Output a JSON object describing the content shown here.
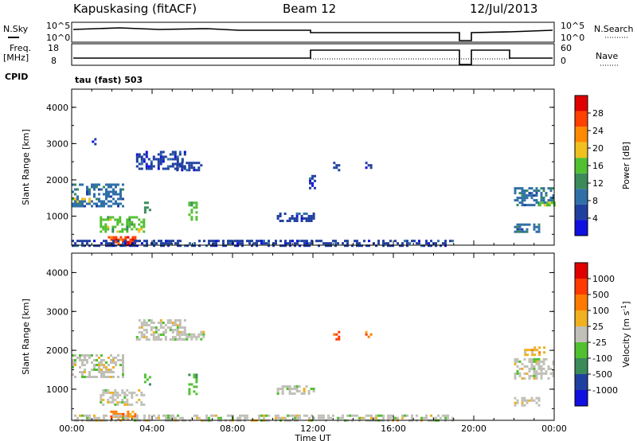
{
  "header": {
    "station": "Kapuskasing (fitACF)",
    "beam": "Beam 12",
    "date": "12/Jul/2013"
  },
  "strip1": {
    "left_label": "N.Sky",
    "left_top": "10^5",
    "left_bottom": "10^0",
    "right_top": "10^5",
    "right_bottom": "10^0",
    "right_label": "N.Search"
  },
  "strip2": {
    "left_label_1": "Freq.",
    "left_label_2": "[MHz]",
    "left_top": "18",
    "left_bottom": "8",
    "right_top": "60",
    "right_bottom": "0",
    "right_label": "Nave"
  },
  "cpid": {
    "label": "CPID",
    "value": "tau (fast) 503"
  },
  "colors": {
    "power": [
      "#1010e0",
      "#2040a0",
      "#3070a8",
      "#3a8a5a",
      "#50c030",
      "#f0c020",
      "#ff8a00",
      "#ff4000",
      "#e00000"
    ],
    "velocity": [
      "#1010e0",
      "#2040a0",
      "#3a8a5a",
      "#50c030",
      "#c0c0b8",
      "#f0b020",
      "#ff7a00",
      "#ff3a00",
      "#e00000"
    ],
    "ground": "#c0c0b8"
  },
  "chart_data": [
    {
      "type": "heatmap",
      "name": "power",
      "xlabel": "",
      "ylabel": "Slant Range [km]",
      "colorbar_label": "Power [dB]",
      "colorbar_ticks": [
        "4",
        "8",
        "12",
        "16",
        "20",
        "24",
        "28"
      ],
      "x_ticks": [
        "00:00",
        "04:00",
        "08:00",
        "12:00",
        "16:00",
        "20:00",
        "00:00"
      ],
      "y_ticks": [
        "1000",
        "2000",
        "3000",
        "4000"
      ],
      "ylim": [
        200,
        4500
      ],
      "xlim_hours": [
        0,
        24
      ],
      "regions": [
        {
          "t0": 0.0,
          "t1": 2.5,
          "r0": 1300,
          "r1": 1900,
          "level": 2
        },
        {
          "t0": 0.0,
          "t1": 0.9,
          "r0": 1400,
          "r1": 1500,
          "level": 5
        },
        {
          "t0": 1.4,
          "t1": 3.6,
          "r0": 600,
          "r1": 1000,
          "level": 4
        },
        {
          "t0": 1.8,
          "t1": 3.2,
          "r0": 250,
          "r1": 450,
          "level": 7
        },
        {
          "t0": 2.4,
          "t1": 2.8,
          "r0": 200,
          "r1": 300,
          "level": 8
        },
        {
          "t0": 3.2,
          "t1": 5.6,
          "r0": 2300,
          "r1": 2800,
          "level": 1
        },
        {
          "t0": 5.2,
          "t1": 6.6,
          "r0": 2300,
          "r1": 2500,
          "level": 1
        },
        {
          "t0": 5.8,
          "t1": 6.2,
          "r0": 900,
          "r1": 1400,
          "level": 4
        },
        {
          "t0": 3.6,
          "t1": 3.9,
          "r0": 1100,
          "r1": 1400,
          "level": 3
        },
        {
          "t0": 0.0,
          "t1": 19.0,
          "r0": 200,
          "r1": 350,
          "level": 1
        },
        {
          "t0": 1.0,
          "t1": 1.2,
          "r0": 3000,
          "r1": 3150,
          "level": 1
        },
        {
          "t0": 10.2,
          "t1": 12.0,
          "r0": 900,
          "r1": 1100,
          "level": 1
        },
        {
          "t0": 11.8,
          "t1": 12.1,
          "r0": 1800,
          "r1": 2200,
          "level": 1
        },
        {
          "t0": 13.0,
          "t1": 13.3,
          "r0": 2300,
          "r1": 2500,
          "level": 1
        },
        {
          "t0": 14.6,
          "t1": 14.9,
          "r0": 2350,
          "r1": 2500,
          "level": 1
        },
        {
          "t0": 22.0,
          "t1": 24.0,
          "r0": 1300,
          "r1": 1800,
          "level": 2
        },
        {
          "t0": 22.0,
          "t1": 23.2,
          "r0": 600,
          "r1": 800,
          "level": 2
        },
        {
          "t0": 23.0,
          "t1": 24.0,
          "r0": 1300,
          "r1": 1400,
          "level": 4
        }
      ]
    },
    {
      "type": "heatmap",
      "name": "velocity",
      "xlabel": "Time UT",
      "ylabel": "Slant Range [km]",
      "colorbar_label": "Velocity [m s",
      "colorbar_label_sup": "-1",
      "colorbar_label_end": "]",
      "colorbar_ticks": [
        "-1000",
        "-500",
        "-100",
        "-25",
        "25",
        "100",
        "500",
        "1000"
      ],
      "x_ticks": [
        "00:00",
        "04:00",
        "08:00",
        "12:00",
        "16:00",
        "20:00",
        "00:00"
      ],
      "y_ticks": [
        "1000",
        "2000",
        "3000",
        "4000"
      ],
      "ylim": [
        200,
        4500
      ],
      "xlim_hours": [
        0,
        24
      ],
      "regions": [
        {
          "t0": 0.0,
          "t1": 2.5,
          "r0": 1300,
          "r1": 1900,
          "level": 4
        },
        {
          "t0": 1.4,
          "t1": 3.6,
          "r0": 600,
          "r1": 1000,
          "level": 4
        },
        {
          "t0": 1.8,
          "t1": 3.2,
          "r0": 250,
          "r1": 450,
          "level": 6
        },
        {
          "t0": 3.2,
          "t1": 5.6,
          "r0": 2300,
          "r1": 2800,
          "level": 4
        },
        {
          "t0": 5.2,
          "t1": 6.6,
          "r0": 2300,
          "r1": 2500,
          "level": 4
        },
        {
          "t0": 5.8,
          "t1": 6.2,
          "r0": 900,
          "r1": 1400,
          "level": 3
        },
        {
          "t0": 3.6,
          "t1": 3.9,
          "r0": 1100,
          "r1": 1400,
          "level": 3
        },
        {
          "t0": 0.0,
          "t1": 19.0,
          "r0": 200,
          "r1": 350,
          "level": 4
        },
        {
          "t0": 10.2,
          "t1": 12.0,
          "r0": 900,
          "r1": 1100,
          "level": 4
        },
        {
          "t0": 13.0,
          "t1": 13.3,
          "r0": 2300,
          "r1": 2500,
          "level": 7
        },
        {
          "t0": 14.6,
          "t1": 14.9,
          "r0": 2350,
          "r1": 2500,
          "level": 6
        },
        {
          "t0": 22.0,
          "t1": 24.0,
          "r0": 1300,
          "r1": 1800,
          "level": 4
        },
        {
          "t0": 22.0,
          "t1": 23.2,
          "r0": 600,
          "r1": 800,
          "level": 4
        },
        {
          "t0": 22.5,
          "t1": 23.5,
          "r0": 1900,
          "r1": 2100,
          "level": 5
        }
      ]
    }
  ]
}
